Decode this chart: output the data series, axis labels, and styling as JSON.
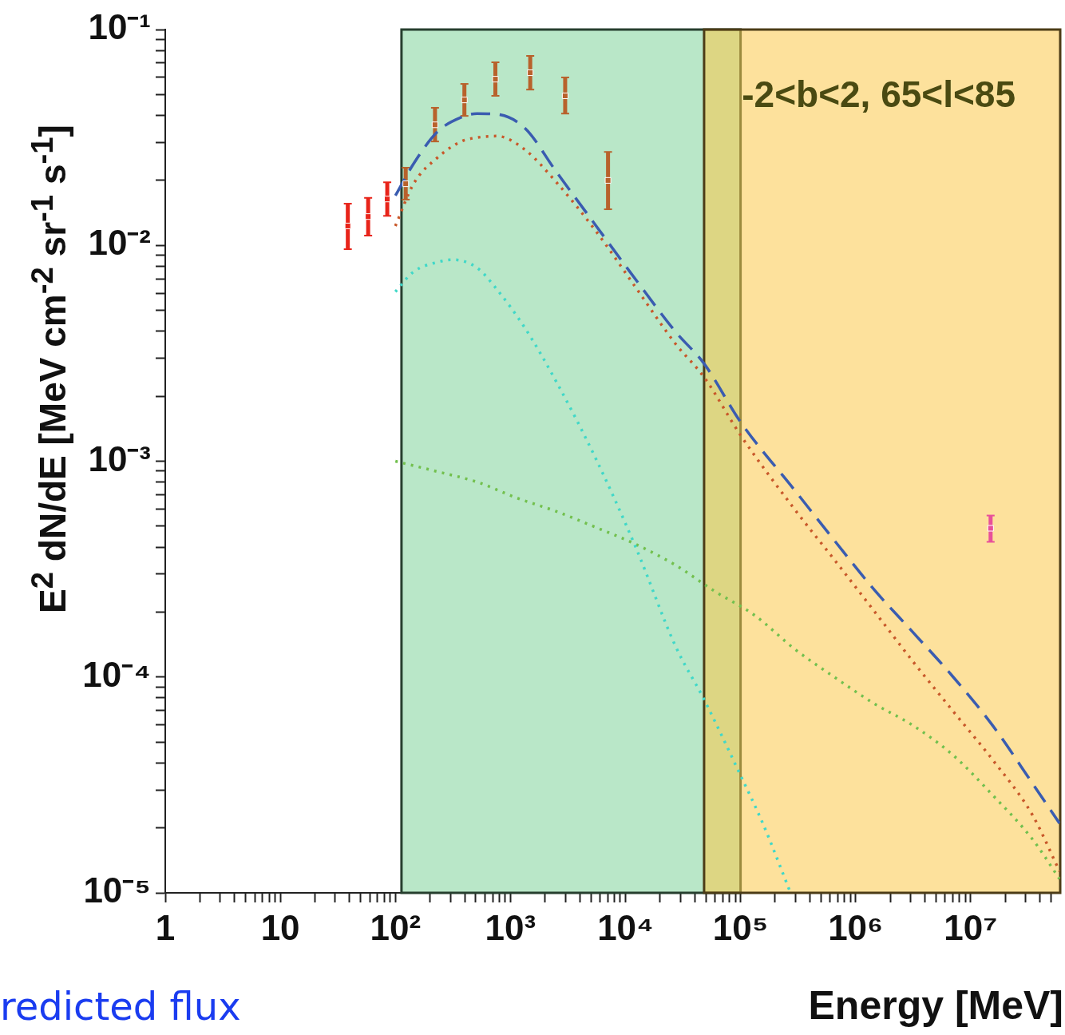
{
  "chart_data": {
    "type": "line",
    "xlabel": "Energy [MeV]",
    "ylabel": "E$^{2}$ dN/dE [MeV cm$^{-2}$ sr$^{-1}$ s$^{-1}$]",
    "annotations": [
      "-2<b<2, 65<l<85",
      "redicted flux"
    ],
    "log": "xy",
    "legend": false,
    "xlim": [
      1,
      60000000
    ],
    "ylim": [
      1e-05,
      0.1
    ],
    "xticks": [
      1,
      {
        "value": 2,
        "label": null
      },
      {
        "value": 3,
        "label": null
      },
      {
        "value": 4,
        "label": null
      },
      {
        "value": 5,
        "label": null
      },
      {
        "value": 6,
        "label": null
      },
      {
        "value": 7,
        "label": null
      },
      {
        "value": 8,
        "label": null
      },
      {
        "value": 9,
        "label": null
      },
      10,
      {
        "value": 20,
        "label": null
      },
      {
        "value": 30,
        "label": null
      },
      {
        "value": 40,
        "label": null
      },
      {
        "value": 50,
        "label": null
      },
      {
        "value": 60,
        "label": null
      },
      {
        "value": 70,
        "label": null
      },
      {
        "value": 80,
        "label": null
      },
      {
        "value": 90,
        "label": null
      },
      {
        "value": 100,
        "label": "10²"
      },
      {
        "value": 200,
        "label": null
      },
      {
        "value": 300,
        "label": null
      },
      {
        "value": 400,
        "label": null
      },
      {
        "value": 500,
        "label": null
      },
      {
        "value": 600,
        "label": null
      },
      {
        "value": 700,
        "label": null
      },
      {
        "value": 800,
        "label": null
      },
      {
        "value": 900,
        "label": null
      },
      {
        "value": 1000,
        "label": "10³"
      },
      {
        "value": 2000,
        "label": null
      },
      {
        "value": 3000,
        "label": null
      },
      {
        "value": 4000,
        "label": null
      },
      {
        "value": 5000,
        "label": null
      },
      {
        "value": 6000,
        "label": null
      },
      {
        "value": 7000,
        "label": null
      },
      {
        "value": 8000,
        "label": null
      },
      {
        "value": 9000,
        "label": null
      },
      {
        "value": 10000,
        "label": "10⁴"
      },
      {
        "value": 20000,
        "label": null
      },
      {
        "value": 30000,
        "label": null
      },
      {
        "value": 40000,
        "label": null
      },
      {
        "value": 50000,
        "label": null
      },
      {
        "value": 60000,
        "label": null
      },
      {
        "value": 70000,
        "label": null
      },
      {
        "value": 80000,
        "label": null
      },
      {
        "value": 90000,
        "label": null
      },
      {
        "value": 100000,
        "label": "10⁵"
      },
      {
        "value": 200000,
        "label": null
      },
      {
        "value": 300000,
        "label": null
      },
      {
        "value": 400000,
        "label": null
      },
      {
        "value": 500000,
        "label": null
      },
      {
        "value": 600000,
        "label": null
      },
      {
        "value": 700000,
        "label": null
      },
      {
        "value": 800000,
        "label": null
      },
      {
        "value": 900000,
        "label": null
      },
      {
        "value": 1000000,
        "label": "10⁶"
      },
      {
        "value": 2000000,
        "label": null
      },
      {
        "value": 3000000,
        "label": null
      },
      {
        "value": 4000000,
        "label": null
      },
      {
        "value": 5000000,
        "label": null
      },
      {
        "value": 6000000,
        "label": null
      },
      {
        "value": 7000000,
        "label": null
      },
      {
        "value": 8000000,
        "label": null
      },
      {
        "value": 9000000,
        "label": null
      },
      {
        "value": 10000000,
        "label": "10⁷"
      },
      {
        "value": 20000000,
        "label": null
      },
      {
        "value": 30000000,
        "label": null
      },
      {
        "value": 40000000,
        "label": null
      },
      {
        "value": 50000000,
        "label": null
      }
    ],
    "yticks": [
      {
        "value": 1e-05,
        "label": "10⁻⁵"
      },
      {
        "value": 2e-05,
        "label": null
      },
      {
        "value": 3e-05,
        "label": null
      },
      {
        "value": 4e-05,
        "label": null
      },
      {
        "value": 5e-05,
        "label": null
      },
      {
        "value": 6e-05,
        "label": null
      },
      {
        "value": 7e-05,
        "label": null
      },
      {
        "value": 8e-05,
        "label": null
      },
      {
        "value": 9e-05,
        "label": null
      },
      {
        "value": 0.0001,
        "label": "10⁻⁴"
      },
      {
        "value": 0.0002,
        "label": null
      },
      {
        "value": 0.0003,
        "label": null
      },
      {
        "value": 0.0004,
        "label": null
      },
      {
        "value": 0.0005,
        "label": null
      },
      {
        "value": 0.0006,
        "label": null
      },
      {
        "value": 0.0007,
        "label": null
      },
      {
        "value": 0.0008,
        "label": null
      },
      {
        "value": 0.0009,
        "label": null
      },
      {
        "value": 0.001,
        "label": "10⁻³"
      },
      {
        "value": 0.002,
        "label": null
      },
      {
        "value": 0.003,
        "label": null
      },
      {
        "value": 0.004,
        "label": null
      },
      {
        "value": 0.005,
        "label": null
      },
      {
        "value": 0.006,
        "label": null
      },
      {
        "value": 0.007,
        "label": null
      },
      {
        "value": 0.008,
        "label": null
      },
      {
        "value": 0.009,
        "label": null
      },
      {
        "value": 0.01,
        "label": "10⁻²"
      },
      {
        "value": 0.02,
        "label": null
      },
      {
        "value": 0.03,
        "label": null
      },
      {
        "value": 0.04,
        "label": null
      },
      {
        "value": 0.05,
        "label": null
      },
      {
        "value": 0.06,
        "label": null
      },
      {
        "value": 0.07,
        "label": null
      },
      {
        "value": 0.08,
        "label": null
      },
      {
        "value": 0.09,
        "label": null
      },
      {
        "value": 0.1,
        "label": "10⁻¹"
      }
    ],
    "bands": [
      {
        "axis": "x",
        "from": 113,
        "to": 100000,
        "color": "#7fd39a"
      },
      {
        "axis": "x",
        "from": 48200,
        "to": 60000000,
        "color": "#fcc84a"
      }
    ],
    "series": [
      {
        "type": "scatter",
        "marker": "square",
        "x": [
          38.6,
          58,
          85,
          123,
          221,
          398,
          740,
          1486,
          2990,
          7050
        ],
        "values": [
          0.0123,
          0.0136,
          0.0164,
          0.0193,
          0.0362,
          0.0472,
          0.0589,
          0.0631,
          0.0493,
          0.02
        ],
        "errors": [
          [
            0.0096,
            0.0156
          ],
          [
            0.0111,
            0.0166
          ],
          [
            0.0137,
            0.0196
          ],
          [
            0.0163,
            0.0229
          ],
          [
            0.0303,
            0.0434
          ],
          [
            0.0398,
            0.056
          ],
          [
            0.0493,
            0.0705
          ],
          [
            0.0527,
            0.0755
          ],
          [
            0.0408,
            0.06
          ],
          [
            0.0147,
            0.0271
          ]
        ],
        "colors": [
          "#e8241a",
          "#e8241a",
          "#e8241a",
          "#b8622c",
          "#b8622c",
          "#b8622c",
          "#b8622c",
          "#b8622c",
          "#b8622c",
          "#b8622c"
        ]
      },
      {
        "type": "scatter",
        "marker": "square",
        "x": [
          14900000
        ],
        "values": [
          0.000489
        ],
        "errors": [
          [
            0.000423,
            0.00056
          ]
        ],
        "colors": [
          "#e8509a"
        ]
      },
      {
        "type": "line",
        "line_style": "dashed",
        "color": "#3a5cb0",
        "x": [
          100,
          144,
          232,
          373,
          513,
          763,
          1330,
          2510,
          5560,
          12300,
          27200,
          48200,
          100000,
          294000,
          652000,
          1440000,
          3190000,
          7050000,
          15600000,
          34500000,
          59200000
        ],
        "values": [
          0.017,
          0.0239,
          0.0336,
          0.0392,
          0.0408,
          0.0405,
          0.035,
          0.0219,
          0.0123,
          0.00693,
          0.00398,
          0.00283,
          0.00152,
          0.000736,
          0.00043,
          0.000255,
          0.00016,
          0.0001,
          5.94e-05,
          3.21e-05,
          2.1e-05
        ]
      },
      {
        "type": "line",
        "line_style": "dotted",
        "color": "#c8582a",
        "x": [
          100,
          144,
          232,
          373,
          513,
          763,
          1330,
          2510,
          5560,
          12300,
          27200,
          48200,
          100000,
          294000,
          652000,
          1440000,
          3190000,
          7050000,
          15600000,
          34500000,
          59200000
        ],
        "values": [
          0.0123,
          0.0193,
          0.0255,
          0.0303,
          0.0316,
          0.0321,
          0.0278,
          0.0196,
          0.0116,
          0.00637,
          0.0035,
          0.00245,
          0.00132,
          0.0006,
          0.00035,
          0.000203,
          0.000117,
          6.93e-05,
          4.12e-05,
          2.29e-05,
          1.26e-05
        ]
      },
      {
        "type": "line",
        "line_style": "dotted",
        "color": "#40d8c8",
        "x": [
          100,
          144,
          232,
          319,
          513,
          763,
          1330,
          2510,
          5560,
          12300,
          27200,
          48200,
          100000,
          156000,
          272000
        ],
        "values": [
          0.0061,
          0.00755,
          0.00836,
          0.00858,
          0.00787,
          0.00625,
          0.00416,
          0.00233,
          0.00102,
          0.000398,
          0.000139,
          7.87e-05,
          3.5e-05,
          2.1e-05,
          1e-05
        ]
      },
      {
        "type": "line",
        "line_style": "dotted",
        "color": "#72c04e",
        "x": [
          100,
          232,
          513,
          1135,
          2510,
          5560,
          12300,
          27200,
          60100,
          133000,
          294000,
          652000,
          1440000,
          3190000,
          7050000,
          15600000,
          34500000,
          59200000
        ],
        "values": [
          0.001,
          0.000895,
          0.000801,
          0.000676,
          0.000585,
          0.000493,
          0.000412,
          0.00033,
          0.000249,
          0.000193,
          0.000135,
          0.0001,
          7.55e-05,
          5.94e-05,
          4.34e-05,
          2.83e-05,
          1.77e-05,
          1.16e-05
        ]
      }
    ]
  }
}
